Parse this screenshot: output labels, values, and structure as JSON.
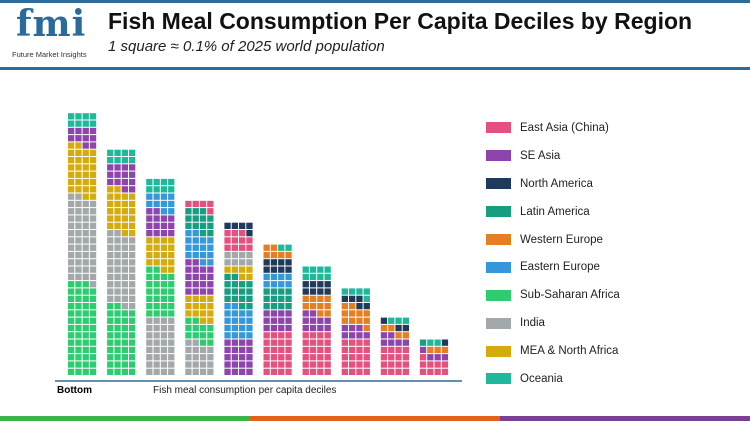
{
  "header": {
    "logo_text": "fmi",
    "logo_sub": "Future Market Insights",
    "title": "Fish Meal Consumption Per Capita Deciles by Region",
    "subtitle": "1 square ≈ 0.1% of 2025 world population"
  },
  "chart_data": {
    "type": "waffle",
    "title": "Fish Meal Consumption Per Capita Deciles by Region",
    "subtitle": "1 square ≈ 0.1% of 2025 world population",
    "xlabel": "Fish meal consumption per capita deciles",
    "x_start_label": "Bottom",
    "squares_per_row": 4,
    "legend_placement": "right",
    "regions": [
      {
        "name": "East Asia (China)",
        "color": "#e5507f"
      },
      {
        "name": "SE Asia",
        "color": "#8e44ad"
      },
      {
        "name": "North America",
        "color": "#1f3a5a"
      },
      {
        "name": "Latin America",
        "color": "#179d80"
      },
      {
        "name": "Western Europe",
        "color": "#e67e22"
      },
      {
        "name": "Eastern Europe",
        "color": "#3498db"
      },
      {
        "name": "Sub-Saharan Africa",
        "color": "#2ecc71"
      },
      {
        "name": "India",
        "color": "#a3a9ab"
      },
      {
        "name": "MEA & North Africa",
        "color": "#d4ac0d"
      },
      {
        "name": "Oceania",
        "color": "#1fb89a"
      }
    ],
    "deciles": [
      {
        "decile": 1,
        "stack": [
          [
            "Sub-Saharan Africa",
            51
          ],
          [
            "India",
            47
          ],
          [
            "MEA & North Africa",
            28
          ],
          [
            "SE Asia",
            10
          ],
          [
            "Oceania",
            8
          ]
        ]
      },
      {
        "decile": 2,
        "stack": [
          [
            "Sub-Saharan Africa",
            38
          ],
          [
            "India",
            40
          ],
          [
            "MEA & North Africa",
            24
          ],
          [
            "SE Asia",
            14
          ],
          [
            "Oceania",
            8
          ]
        ]
      },
      {
        "decile": 3,
        "stack": [
          [
            "India",
            32
          ],
          [
            "Sub-Saharan Africa",
            26
          ],
          [
            "MEA & North Africa",
            18
          ],
          [
            "SE Asia",
            14
          ],
          [
            "Eastern Europe",
            10
          ],
          [
            "Oceania",
            8
          ]
        ]
      },
      {
        "decile": 4,
        "stack": [
          [
            "India",
            18
          ],
          [
            "Sub-Saharan Africa",
            12
          ],
          [
            "MEA & North Africa",
            14
          ],
          [
            "SE Asia",
            18
          ],
          [
            "Eastern Europe",
            16
          ],
          [
            "Latin America",
            13
          ],
          [
            "East Asia (China)",
            5
          ]
        ]
      },
      {
        "decile": 5,
        "stack": [
          [
            "SE Asia",
            20
          ],
          [
            "Eastern Europe",
            18
          ],
          [
            "Latin America",
            16
          ],
          [
            "MEA & North Africa",
            6
          ],
          [
            "India",
            8
          ],
          [
            "East Asia (China)",
            11
          ],
          [
            "North America",
            5
          ]
        ]
      },
      {
        "decile": 6,
        "stack": [
          [
            "East Asia (China)",
            24
          ],
          [
            "SE Asia",
            12
          ],
          [
            "Latin America",
            12
          ],
          [
            "Eastern Europe",
            8
          ],
          [
            "North America",
            8
          ],
          [
            "Western Europe",
            6
          ],
          [
            "Oceania",
            2
          ]
        ]
      },
      {
        "decile": 7,
        "stack": [
          [
            "East Asia (China)",
            24
          ],
          [
            "SE Asia",
            10
          ],
          [
            "Western Europe",
            10
          ],
          [
            "North America",
            8
          ],
          [
            "Oceania",
            8
          ]
        ]
      },
      {
        "decile": 8,
        "stack": [
          [
            "East Asia (China)",
            20
          ],
          [
            "SE Asia",
            7
          ],
          [
            "Western Europe",
            11
          ],
          [
            "North America",
            5
          ],
          [
            "Oceania",
            5
          ]
        ]
      },
      {
        "decile": 9,
        "stack": [
          [
            "East Asia (China)",
            16
          ],
          [
            "SE Asia",
            6
          ],
          [
            "Western Europe",
            4
          ],
          [
            "North America",
            3
          ],
          [
            "Oceania",
            3
          ]
        ]
      },
      {
        "decile": 10,
        "stack": [
          [
            "East Asia (China)",
            9
          ],
          [
            "SE Asia",
            4
          ],
          [
            "Western Europe",
            3
          ],
          [
            "Latin America",
            1
          ],
          [
            "Oceania",
            2
          ],
          [
            "North America",
            1
          ]
        ]
      }
    ]
  },
  "footer_colors": [
    "#3bb54a",
    "#e2621b",
    "#7b3f98"
  ]
}
